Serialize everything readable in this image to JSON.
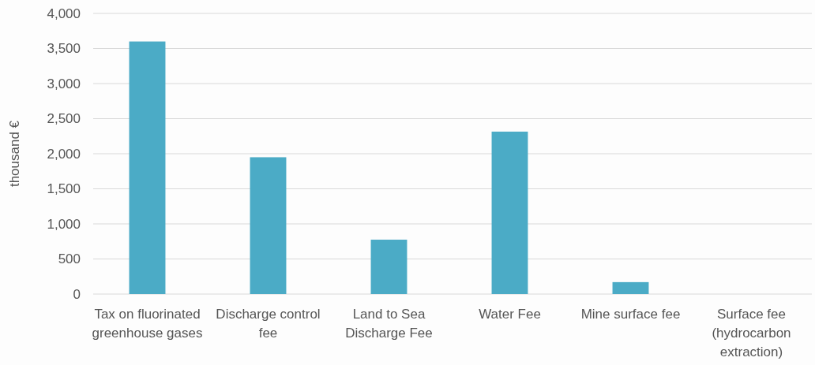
{
  "chart_data": {
    "type": "bar",
    "ylabel": "thousand €",
    "categories": [
      "Tax on fluorinated greenhouse gases",
      "Discharge control fee",
      "Land to Sea Discharge Fee",
      "Water Fee",
      "Mine surface fee",
      "Surface fee (hydrocarbon extraction)"
    ],
    "values": [
      3600,
      1950,
      775,
      2315,
      170,
      0
    ],
    "color": "#4babc6",
    "ylim": [
      0,
      4000
    ],
    "yticks": [
      {
        "value": 0,
        "label": "0"
      },
      {
        "value": 500,
        "label": "500"
      },
      {
        "value": 1000,
        "label": "1,000"
      },
      {
        "value": 1500,
        "label": "1,500"
      },
      {
        "value": 2000,
        "label": "2,000"
      },
      {
        "value": 2500,
        "label": "2,500"
      },
      {
        "value": 3000,
        "label": "3,000"
      },
      {
        "value": 3500,
        "label": "3,500"
      },
      {
        "value": 4000,
        "label": "4,000"
      }
    ],
    "grid": "y"
  }
}
